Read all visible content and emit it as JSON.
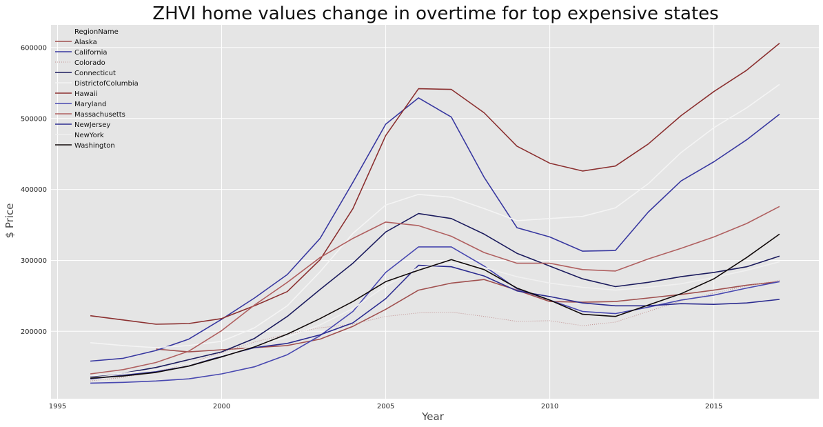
{
  "chart_data": {
    "type": "line",
    "title": "ZHVI home values change in overtime for top expensive states",
    "xlabel": "Year",
    "ylabel": "$ Price",
    "xlim": [
      1994.8,
      2018.2
    ],
    "ylim": [
      105000,
      632000
    ],
    "x_ticks": [
      1995,
      2000,
      2005,
      2010,
      2015
    ],
    "y_ticks": [
      200000,
      300000,
      400000,
      500000,
      600000
    ],
    "grid": true,
    "background": "#e5e5e5",
    "legend": {
      "title": "RegionName",
      "placement": "top-left"
    },
    "x": [
      1996,
      1997,
      1998,
      1999,
      2000,
      2001,
      2002,
      2003,
      2004,
      2005,
      2006,
      2007,
      2008,
      2009,
      2010,
      2011,
      2012,
      2013,
      2014,
      2015,
      2016,
      2017
    ],
    "series": [
      {
        "name": "Alaska",
        "color": "#a0504f",
        "style": "solid",
        "values": [
          null,
          null,
          175000,
          171000,
          174000,
          177000,
          180000,
          189000,
          207000,
          231000,
          258000,
          268000,
          273000,
          258000,
          242000,
          241000,
          242000,
          247000,
          252000,
          258000,
          265000,
          270000
        ]
      },
      {
        "name": "California",
        "color": "#3838a0",
        "style": "solid",
        "values": [
          158000,
          162000,
          173000,
          189000,
          217000,
          247000,
          280000,
          331000,
          410000,
          492000,
          529000,
          502000,
          417000,
          346000,
          333000,
          313000,
          314000,
          368000,
          412000,
          439000,
          470000,
          506000
        ]
      },
      {
        "name": "Colorado",
        "color": "#c08f8f",
        "style": "dotted",
        "values": [
          130000,
          135000,
          143000,
          155000,
          170000,
          185000,
          196000,
          205000,
          210000,
          221000,
          226000,
          227000,
          221000,
          214000,
          215000,
          208000,
          213000,
          228000,
          243000,
          254000,
          264000,
          272000
        ]
      },
      {
        "name": "Connecticut",
        "color": "#1c1c5e",
        "style": "solid",
        "values": [
          136000,
          141000,
          149000,
          160000,
          171000,
          190000,
          221000,
          259000,
          296000,
          340000,
          366000,
          359000,
          337000,
          310000,
          292000,
          274000,
          263000,
          269000,
          277000,
          283000,
          291000,
          306000
        ]
      },
      {
        "name": "DistrictofColumbia",
        "color": "#f4f4f4",
        "style": "solid",
        "values": [
          184000,
          180000,
          177000,
          180000,
          186000,
          205000,
          236000,
          284000,
          338000,
          378000,
          393000,
          389000,
          373000,
          356000,
          359000,
          362000,
          374000,
          408000,
          452000,
          487000,
          515000,
          548000
        ]
      },
      {
        "name": "Hawaii",
        "color": "#8b3030",
        "style": "solid",
        "values": [
          222000,
          216000,
          210000,
          211000,
          218000,
          236000,
          256000,
          301000,
          373000,
          476000,
          542000,
          541000,
          508000,
          461000,
          437000,
          426000,
          433000,
          464000,
          504000,
          538000,
          568000,
          606000
        ]
      },
      {
        "name": "Maryland",
        "color": "#4848b0",
        "style": "solid",
        "values": [
          127000,
          128000,
          130000,
          133000,
          140000,
          150000,
          167000,
          194000,
          228000,
          283000,
          319000,
          319000,
          292000,
          260000,
          244000,
          228000,
          225000,
          234000,
          244000,
          251000,
          261000,
          270000
        ]
      },
      {
        "name": "Massachusetts",
        "color": "#b06060",
        "style": "solid",
        "values": [
          140000,
          146000,
          156000,
          172000,
          201000,
          237000,
          269000,
          304000,
          331000,
          354000,
          349000,
          334000,
          311000,
          296000,
          296000,
          287000,
          285000,
          302000,
          317000,
          333000,
          352000,
          376000
        ]
      },
      {
        "name": "NewJersey",
        "color": "#2c2c90",
        "style": "solid",
        "values": [
          133000,
          138000,
          143000,
          151000,
          165000,
          177000,
          183000,
          195000,
          212000,
          246000,
          293000,
          291000,
          278000,
          257000,
          249000,
          240000,
          236000,
          236000,
          239000,
          238000,
          240000,
          245000
        ]
      },
      {
        "name": "NewYork",
        "color": "#f0f0f0",
        "style": "solid",
        "values": [
          137000,
          141000,
          146000,
          155000,
          166000,
          179000,
          192000,
          209000,
          232000,
          264000,
          290000,
          296000,
          290000,
          277000,
          268000,
          262000,
          258000,
          262000,
          267000,
          276000,
          286000,
          298000
        ]
      },
      {
        "name": "Washington",
        "color": "#110a0a",
        "style": "solid",
        "values": [
          134000,
          137000,
          142000,
          151000,
          164000,
          178000,
          196000,
          218000,
          242000,
          270000,
          286000,
          301000,
          287000,
          261000,
          244000,
          224000,
          221000,
          237000,
          253000,
          274000,
          304000,
          337000
        ]
      }
    ]
  }
}
